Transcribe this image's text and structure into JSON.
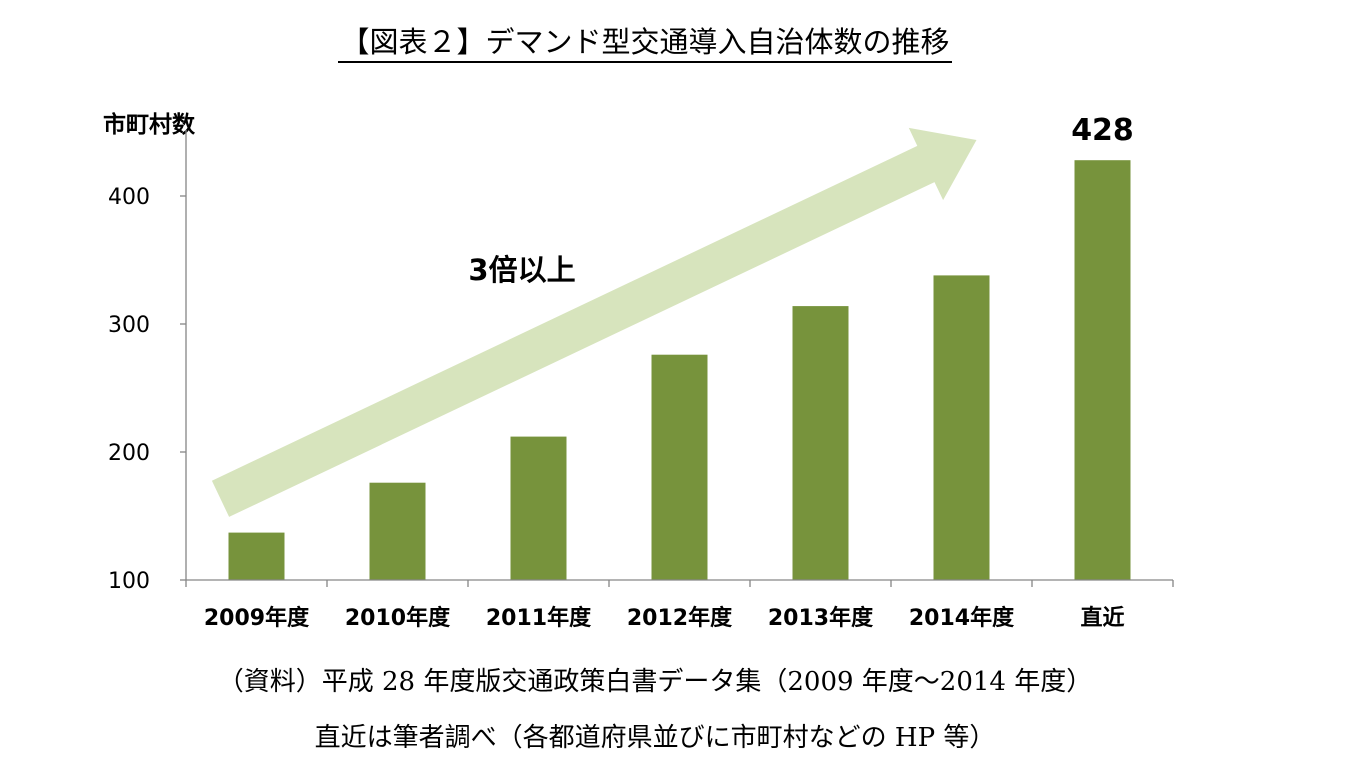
{
  "title": "【図表２】デマンド型交通導入自治体数の推移",
  "chart_data": {
    "type": "bar",
    "title": "【図表２】デマンド型交通導入自治体数の推移",
    "ylabel": "市町村数",
    "xlabel": "",
    "categories": [
      "2009年度",
      "2010年度",
      "2011年度",
      "2012年度",
      "2013年度",
      "2014年度",
      "直近"
    ],
    "values": [
      137,
      176,
      212,
      276,
      314,
      338,
      428
    ],
    "ylim": [
      100,
      450
    ],
    "yticks": [
      100,
      200,
      300,
      400
    ],
    "grid": false,
    "bar_color": "#77933c",
    "data_labels": [
      {
        "index": 6,
        "text": "428"
      }
    ],
    "annotation": {
      "text": "3倍以上",
      "arrow_color": "#d7e4bd",
      "from_value": 190,
      "to_value": 450,
      "from_category_index": 0,
      "to_category_index": 5
    }
  },
  "notes": {
    "source": "（資料）平成 28 年度版交通政策白書データ集（2009 年度～2014 年度）",
    "recent": "直近は筆者調べ（各都道府県並びに市町村などの HP 等）"
  }
}
